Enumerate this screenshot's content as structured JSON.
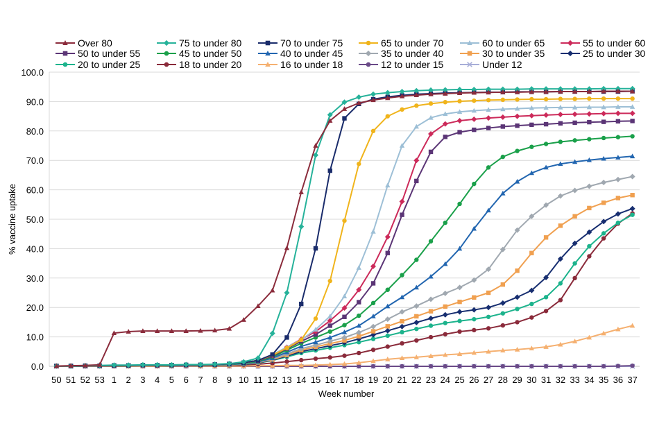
{
  "chart_data": {
    "type": "line",
    "title": "",
    "xlabel": "Week number",
    "ylabel": "% vaccine uptake",
    "ylim": [
      0,
      100
    ],
    "y_ticks": [
      "0.0",
      "10.0",
      "20.0",
      "30.0",
      "40.0",
      "50.0",
      "60.0",
      "70.0",
      "80.0",
      "90.0",
      "100.0"
    ],
    "categories": [
      "50",
      "51",
      "52",
      "53",
      "1",
      "2",
      "3",
      "4",
      "5",
      "6",
      "7",
      "8",
      "9",
      "10",
      "11",
      "12",
      "13",
      "14",
      "15",
      "16",
      "17",
      "18",
      "19",
      "20",
      "21",
      "22",
      "23",
      "24",
      "25",
      "26",
      "27",
      "28",
      "29",
      "30",
      "31",
      "32",
      "33",
      "34",
      "35",
      "36",
      "37"
    ],
    "legend_position": "top",
    "series": [
      {
        "name": "Over 80",
        "color": "#8b2c3c",
        "marker": "triangle",
        "values": [
          0.1,
          0.2,
          0.3,
          0.5,
          11.3,
          11.8,
          12,
          12,
          12,
          12,
          12.1,
          12.2,
          12.8,
          15.8,
          20.5,
          25.8,
          40.2,
          59.2,
          75,
          83.5,
          87.5,
          89.5,
          90.5,
          91.2,
          91.8,
          92.2,
          92.5,
          92.7,
          92.9,
          93,
          93.1,
          93.2,
          93.2,
          93.3,
          93.3,
          93.4,
          93.4,
          93.4,
          93.5,
          93.5,
          93.5
        ]
      },
      {
        "name": "75 to under 80",
        "color": "#26b29a",
        "marker": "diamond",
        "values": [
          0.1,
          0.1,
          0.2,
          0.3,
          0.4,
          0.4,
          0.5,
          0.5,
          0.5,
          0.6,
          0.6,
          0.7,
          0.9,
          1.5,
          2.8,
          11.2,
          25,
          47.5,
          71.8,
          85.5,
          89.8,
          91.5,
          92.5,
          93,
          93.4,
          93.7,
          93.9,
          94,
          94.1,
          94.1,
          94.2,
          94.2,
          94.2,
          94.3,
          94.3,
          94.3,
          94.3,
          94.3,
          94.4,
          94.4,
          94.4
        ]
      },
      {
        "name": "70 to under 75",
        "color": "#1a2c6b",
        "marker": "square",
        "values": [
          0.1,
          0.1,
          0.2,
          0.2,
          0.3,
          0.3,
          0.4,
          0.4,
          0.4,
          0.5,
          0.5,
          0.6,
          0.8,
          1.2,
          2,
          4,
          9.8,
          21.2,
          40.1,
          66.5,
          84.3,
          89.2,
          90.8,
          91.6,
          92.1,
          92.5,
          92.7,
          92.9,
          93,
          93.1,
          93.2,
          93.2,
          93.3,
          93.3,
          93.3,
          93.4,
          93.4,
          93.4,
          93.4,
          93.4,
          93.5
        ]
      },
      {
        "name": "65 to under 70",
        "color": "#f0b41c",
        "marker": "circle",
        "values": [
          0.1,
          0.1,
          0.2,
          0.2,
          0.3,
          0.3,
          0.4,
          0.4,
          0.4,
          0.5,
          0.5,
          0.6,
          0.8,
          1.2,
          2,
          3.8,
          6.2,
          9,
          16.2,
          29,
          49.5,
          68.8,
          80,
          85,
          87.3,
          88.6,
          89.3,
          89.8,
          90.1,
          90.3,
          90.5,
          90.6,
          90.7,
          90.8,
          90.8,
          90.9,
          90.9,
          91,
          91,
          91,
          91
        ]
      },
      {
        "name": "60 to under 65",
        "color": "#9dbfd6",
        "marker": "triangle",
        "values": [
          0.1,
          0.1,
          0.2,
          0.2,
          0.3,
          0.3,
          0.3,
          0.4,
          0.4,
          0.4,
          0.5,
          0.6,
          0.8,
          1.2,
          2,
          4,
          6.5,
          9,
          12.5,
          17,
          23.8,
          33.5,
          45.8,
          61.5,
          75,
          81.5,
          84.5,
          85.8,
          86.5,
          86.9,
          87.2,
          87.4,
          87.6,
          87.8,
          87.9,
          88,
          88,
          88.1,
          88.1,
          88.2,
          88.2
        ]
      },
      {
        "name": "55 to under 60",
        "color": "#cc2a5a",
        "marker": "diamond",
        "values": [
          0.1,
          0.1,
          0.1,
          0.2,
          0.2,
          0.3,
          0.3,
          0.3,
          0.4,
          0.4,
          0.5,
          0.6,
          0.8,
          1.2,
          2,
          3.8,
          6.5,
          9.2,
          11.8,
          15.5,
          19.8,
          26,
          34,
          44,
          56,
          70,
          79,
          82.4,
          83.5,
          84,
          84.4,
          84.7,
          85,
          85.2,
          85.4,
          85.6,
          85.7,
          85.8,
          85.9,
          86,
          86
        ]
      },
      {
        "name": "50 to under 55",
        "color": "#5b3576",
        "marker": "square",
        "values": [
          0.1,
          0.1,
          0.1,
          0.2,
          0.2,
          0.3,
          0.3,
          0.3,
          0.4,
          0.4,
          0.5,
          0.6,
          0.8,
          1.2,
          1.9,
          3.5,
          6,
          8.5,
          10.8,
          13.8,
          16.8,
          21.8,
          28.2,
          38.5,
          51.5,
          63,
          72.9,
          78,
          79.6,
          80.4,
          81,
          81.5,
          81.8,
          82.1,
          82.3,
          82.6,
          82.8,
          83,
          83.1,
          83.3,
          83.4
        ]
      },
      {
        "name": "45 to under 50",
        "color": "#1aa04a",
        "marker": "circle",
        "values": [
          0.1,
          0.1,
          0.1,
          0.2,
          0.2,
          0.2,
          0.3,
          0.3,
          0.3,
          0.4,
          0.4,
          0.5,
          0.7,
          1,
          1.7,
          3.2,
          5.5,
          7.8,
          9.8,
          11.8,
          14,
          17.2,
          21.5,
          26,
          31,
          36.2,
          42.5,
          48.8,
          55.2,
          62,
          67.6,
          71.2,
          73.2,
          74.6,
          75.6,
          76.3,
          76.8,
          77.2,
          77.6,
          77.9,
          78.2
        ]
      },
      {
        "name": "40 to under 45",
        "color": "#2266b0",
        "marker": "triangle",
        "values": [
          0.1,
          0.1,
          0.1,
          0.2,
          0.2,
          0.2,
          0.3,
          0.3,
          0.3,
          0.3,
          0.4,
          0.5,
          0.6,
          0.9,
          1.5,
          2.8,
          4.8,
          6.8,
          8.2,
          9.8,
          11.6,
          13.8,
          17,
          20.4,
          23.5,
          26.8,
          30.5,
          34.8,
          40,
          46.8,
          53,
          58.8,
          62.8,
          65.7,
          67.6,
          68.8,
          69.5,
          70.1,
          70.6,
          71,
          71.4
        ]
      },
      {
        "name": "35 to under 40",
        "color": "#a0a8b0",
        "marker": "diamond",
        "values": [
          0.1,
          0.1,
          0.1,
          0.1,
          0.2,
          0.2,
          0.2,
          0.3,
          0.3,
          0.3,
          0.4,
          0.4,
          0.6,
          0.8,
          1.4,
          2.5,
          4.2,
          6,
          7.2,
          8.5,
          9.8,
          11.5,
          13.5,
          16,
          18.5,
          20.5,
          22.8,
          24.8,
          26.8,
          29.3,
          33,
          39.7,
          46.3,
          51,
          54.8,
          57.9,
          59.8,
          61.2,
          62.5,
          63.5,
          64.5
        ]
      },
      {
        "name": "30 to under 35",
        "color": "#f0a050",
        "marker": "square",
        "values": [
          0.1,
          0.1,
          0.1,
          0.1,
          0.2,
          0.2,
          0.2,
          0.2,
          0.3,
          0.3,
          0.3,
          0.4,
          0.5,
          0.8,
          1.3,
          2.3,
          3.8,
          5.5,
          6.6,
          7.7,
          8.8,
          10.2,
          11.9,
          13.6,
          15.3,
          17,
          18.7,
          20.3,
          21.9,
          23.4,
          25,
          27.8,
          32.5,
          38.5,
          43.8,
          47.8,
          51,
          53.8,
          55.6,
          57.2,
          58.2
        ]
      },
      {
        "name": "25 to under 30",
        "color": "#172e70",
        "marker": "diamond",
        "values": [
          0.1,
          0.1,
          0.1,
          0.1,
          0.2,
          0.2,
          0.2,
          0.2,
          0.3,
          0.3,
          0.3,
          0.4,
          0.5,
          0.7,
          1.2,
          2.1,
          3.5,
          5,
          6,
          7,
          8,
          9.3,
          10.7,
          12.1,
          13.5,
          14.9,
          16.3,
          17.5,
          18.5,
          19.2,
          20,
          21.5,
          23.5,
          25.8,
          30.2,
          36.5,
          41.8,
          45.6,
          49.2,
          51.8,
          53.6
        ]
      },
      {
        "name": "20 to under 25",
        "color": "#1cb38c",
        "marker": "circle",
        "values": [
          0.1,
          0.1,
          0.1,
          0.1,
          0.2,
          0.2,
          0.2,
          0.2,
          0.2,
          0.3,
          0.3,
          0.4,
          0.5,
          0.7,
          1.1,
          2,
          3.2,
          4.5,
          5.4,
          6.3,
          7.2,
          8.2,
          9.3,
          10.4,
          11.6,
          12.7,
          13.8,
          14.7,
          15.4,
          16,
          16.8,
          18,
          19.5,
          21.2,
          23.5,
          28.2,
          35,
          40.8,
          45.2,
          48.8,
          51.5
        ]
      },
      {
        "name": "18 to under 20",
        "color": "#8a2a3a",
        "marker": "circle",
        "values": [
          0,
          0,
          0.1,
          0.1,
          0.1,
          0.1,
          0.2,
          0.2,
          0.2,
          0.2,
          0.3,
          0.3,
          0.4,
          0.5,
          0.7,
          1.1,
          1.6,
          2.1,
          2.6,
          3,
          3.6,
          4.5,
          5.6,
          6.7,
          7.8,
          8.8,
          9.9,
          10.9,
          11.8,
          12.3,
          12.9,
          13.9,
          15,
          16.6,
          18.8,
          22.5,
          30,
          37.4,
          43.5,
          48.5,
          52
        ]
      },
      {
        "name": "16 to under 18",
        "color": "#f5b070",
        "marker": "triangle",
        "values": [
          0,
          0,
          0,
          0,
          0,
          0,
          0,
          0,
          0.1,
          0.1,
          0.1,
          0.1,
          0.1,
          0.1,
          0.2,
          0.2,
          0.3,
          0.3,
          0.4,
          0.6,
          0.8,
          1.2,
          1.8,
          2.4,
          2.8,
          3.1,
          3.5,
          3.9,
          4.2,
          4.6,
          5,
          5.4,
          5.7,
          6.1,
          6.6,
          7.4,
          8.5,
          9.8,
          11.2,
          12.6,
          13.8
        ]
      },
      {
        "name": "12 to under 15",
        "color": "#6a4a88",
        "marker": "circle",
        "values": [
          0,
          0,
          0,
          0,
          0,
          0,
          0,
          0,
          0,
          0,
          0,
          0,
          0,
          0,
          0,
          0,
          0,
          0,
          0,
          0,
          0,
          0,
          0,
          0,
          0,
          0,
          0,
          0,
          0,
          0,
          0,
          0,
          0,
          0,
          0,
          0,
          0,
          0,
          0,
          0.1,
          0.2
        ]
      },
      {
        "name": "Under 12",
        "color": "#a8aed8",
        "marker": "x",
        "values": [
          0,
          0,
          0,
          0,
          0,
          0,
          0,
          0,
          0,
          0,
          0,
          0,
          0,
          0,
          0,
          0,
          0,
          0,
          0,
          0,
          0,
          0,
          0,
          0,
          0,
          0,
          0,
          0,
          0,
          0,
          0,
          0,
          0,
          0,
          0,
          0,
          0,
          0,
          0,
          0,
          0
        ]
      }
    ]
  }
}
